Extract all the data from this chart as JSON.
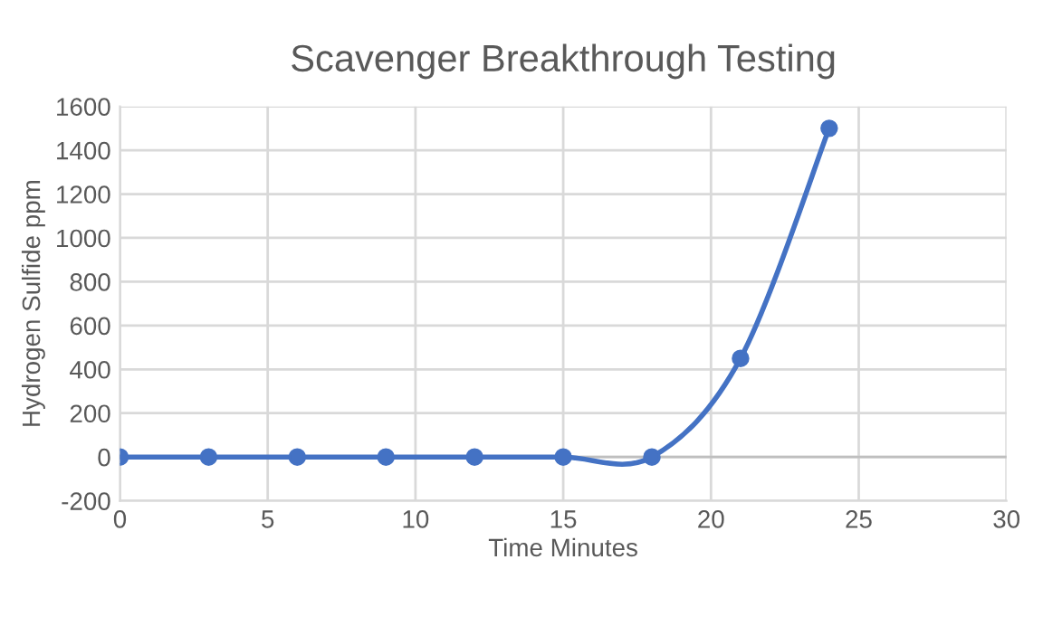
{
  "chart_data": {
    "type": "line",
    "title": "Scavenger Breakthrough Testing",
    "xlabel": "Time Minutes",
    "ylabel": "Hydrogen Sulfide ppm",
    "x": [
      0,
      3,
      6,
      9,
      12,
      15,
      18,
      21,
      24
    ],
    "series": [
      {
        "color": "#4472c4",
        "values": [
          0,
          0,
          0,
          0,
          0,
          0,
          0,
          450,
          1500
        ]
      }
    ],
    "xlim": [
      0,
      30
    ],
    "xticks": [
      0,
      5,
      10,
      15,
      20,
      25,
      30
    ],
    "ylim": [
      -200,
      1600
    ],
    "yticks": [
      -200,
      0,
      200,
      400,
      600,
      800,
      1000,
      1200,
      1400,
      1600
    ],
    "grid": true,
    "marker": "circle",
    "line_style": "solid"
  }
}
